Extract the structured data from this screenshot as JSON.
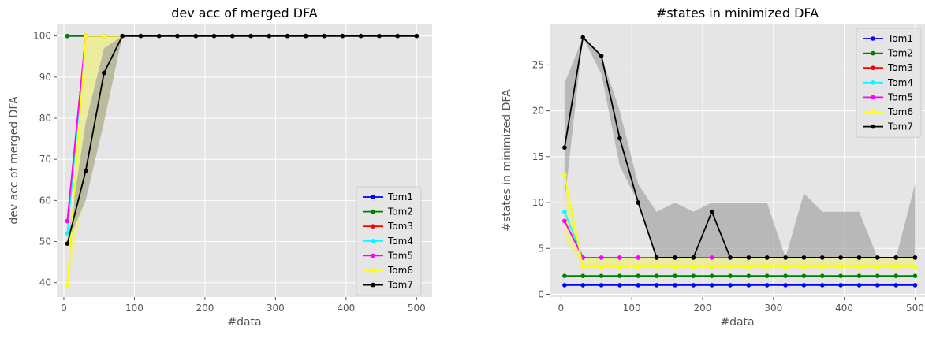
{
  "chart_data": [
    {
      "type": "line",
      "title": "dev acc of merged DFA",
      "xlabel": "#data",
      "ylabel": "dev acc of merged DFA",
      "xlim": [
        -10,
        522
      ],
      "ylim": [
        36.5,
        103
      ],
      "xticks": [
        0,
        100,
        200,
        300,
        400,
        500
      ],
      "yticks": [
        40,
        50,
        60,
        70,
        80,
        90,
        100
      ],
      "grid": true,
      "legend": "lower-right",
      "x": [
        5,
        31,
        57,
        83,
        109,
        135,
        161,
        187,
        213,
        239,
        265,
        291,
        317,
        343,
        369,
        395,
        421,
        447,
        473,
        500
      ],
      "series": [
        {
          "name": "Tom1",
          "color": "#0000ff",
          "values": [
            100,
            100,
            100,
            100,
            100,
            100,
            100,
            100,
            100,
            100,
            100,
            100,
            100,
            100,
            100,
            100,
            100,
            100,
            100,
            100
          ]
        },
        {
          "name": "Tom2",
          "color": "#008000",
          "values": [
            100,
            100,
            100,
            100,
            100,
            100,
            100,
            100,
            100,
            100,
            100,
            100,
            100,
            100,
            100,
            100,
            100,
            100,
            100,
            100
          ]
        },
        {
          "name": "Tom3",
          "color": "#ff0000",
          "values": [
            55,
            100,
            100,
            100,
            100,
            100,
            100,
            100,
            100,
            100,
            100,
            100,
            100,
            100,
            100,
            100,
            100,
            100,
            100,
            100
          ]
        },
        {
          "name": "Tom4",
          "color": "#00ffff",
          "values": [
            52,
            100,
            100,
            100,
            100,
            100,
            100,
            100,
            100,
            100,
            100,
            100,
            100,
            100,
            100,
            100,
            100,
            100,
            100,
            100
          ]
        },
        {
          "name": "Tom5",
          "color": "#ff00ff",
          "values": [
            55,
            100,
            100,
            100,
            100,
            100,
            100,
            100,
            100,
            100,
            100,
            100,
            100,
            100,
            100,
            100,
            100,
            100,
            100,
            100
          ]
        },
        {
          "name": "Tom6",
          "color": "#ffff00",
          "values": [
            39.5,
            100,
            100,
            100,
            100,
            100,
            100,
            100,
            100,
            100,
            100,
            100,
            100,
            100,
            100,
            100,
            100,
            100,
            100,
            100
          ],
          "band_low": [
            39.5,
            62,
            79,
            100,
            100,
            100,
            100,
            100,
            100,
            100,
            100,
            100,
            100,
            100,
            100,
            100,
            100,
            100,
            100,
            100
          ],
          "band_high": [
            39.5,
            100,
            100,
            100,
            100,
            100,
            100,
            100,
            100,
            100,
            100,
            100,
            100,
            100,
            100,
            100,
            100,
            100,
            100,
            100
          ]
        },
        {
          "name": "Tom7",
          "color": "#000000",
          "values": [
            49.5,
            67.2,
            91,
            100,
            100,
            100,
            100,
            100,
            100,
            100,
            100,
            100,
            100,
            100,
            100,
            100,
            100,
            100,
            100,
            100
          ],
          "band_low": [
            49.5,
            60,
            79,
            100,
            100,
            100,
            100,
            100,
            100,
            100,
            100,
            100,
            100,
            100,
            100,
            100,
            100,
            100,
            100,
            100
          ],
          "band_high": [
            49.5,
            79,
            97,
            100,
            100,
            100,
            100,
            100,
            100,
            100,
            100,
            100,
            100,
            100,
            100,
            100,
            100,
            100,
            100,
            100
          ]
        }
      ]
    },
    {
      "type": "line",
      "title": "#states in minimized DFA",
      "xlabel": "#data",
      "ylabel": "#states in minimized DFA",
      "xlim": [
        -16,
        514
      ],
      "ylim": [
        -0.3,
        29.5
      ],
      "xticks": [
        0,
        100,
        200,
        300,
        400,
        500
      ],
      "yticks": [
        0,
        5,
        10,
        15,
        20,
        25
      ],
      "grid": true,
      "legend": "upper-right",
      "x": [
        5,
        31,
        57,
        83,
        109,
        135,
        161,
        187,
        213,
        239,
        265,
        291,
        317,
        343,
        369,
        395,
        421,
        447,
        473,
        500
      ],
      "series": [
        {
          "name": "Tom1",
          "color": "#0000ff",
          "values": [
            1,
            1,
            1,
            1,
            1,
            1,
            1,
            1,
            1,
            1,
            1,
            1,
            1,
            1,
            1,
            1,
            1,
            1,
            1,
            1
          ]
        },
        {
          "name": "Tom2",
          "color": "#008000",
          "values": [
            2,
            2,
            2,
            2,
            2,
            2,
            2,
            2,
            2,
            2,
            2,
            2,
            2,
            2,
            2,
            2,
            2,
            2,
            2,
            2
          ]
        },
        {
          "name": "Tom3",
          "color": "#ff0000",
          "values": [
            8,
            4,
            4,
            4,
            4,
            4,
            4,
            4,
            4,
            4,
            4,
            4,
            4,
            4,
            4,
            4,
            4,
            4,
            4,
            4
          ]
        },
        {
          "name": "Tom4",
          "color": "#00ffff",
          "values": [
            9,
            4,
            4,
            4,
            4,
            4,
            4,
            4,
            4,
            4,
            4,
            4,
            4,
            4,
            4,
            4,
            4,
            4,
            4,
            4
          ]
        },
        {
          "name": "Tom5",
          "color": "#ff00ff",
          "values": [
            8,
            4,
            4,
            4,
            4,
            4,
            4,
            4,
            4,
            4,
            4,
            4,
            4,
            4,
            4,
            4,
            4,
            4,
            4,
            4
          ]
        },
        {
          "name": "Tom6",
          "color": "#ffff00",
          "values": [
            13,
            3,
            3,
            3,
            3,
            3,
            3,
            3,
            3,
            3,
            3,
            3,
            3,
            3,
            3,
            3,
            3,
            3,
            3,
            3
          ],
          "band_low": [
            6,
            3,
            3,
            3,
            3,
            3,
            3,
            3,
            3,
            3,
            3,
            3,
            3,
            3,
            3,
            3,
            3,
            3,
            3,
            3
          ],
          "band_high": [
            13,
            4,
            4,
            4,
            4,
            4,
            4,
            4,
            4,
            4,
            4,
            4,
            4,
            4,
            4,
            4,
            4,
            4,
            4,
            4
          ]
        },
        {
          "name": "Tom7",
          "color": "#000000",
          "values": [
            16,
            28,
            26,
            17,
            10,
            4,
            4,
            4,
            9,
            4,
            4,
            4,
            4,
            4,
            4,
            4,
            4,
            4,
            4,
            4
          ],
          "band_low": [
            10,
            28,
            24,
            14,
            10,
            4,
            4,
            4,
            4,
            4,
            4,
            4,
            4,
            4,
            4,
            4,
            4,
            4,
            4,
            4
          ],
          "band_high": [
            23,
            28,
            26,
            20,
            12,
            9,
            10,
            9,
            10,
            10,
            10,
            10,
            4,
            11,
            9,
            9,
            9,
            4,
            4,
            12
          ]
        }
      ]
    }
  ]
}
